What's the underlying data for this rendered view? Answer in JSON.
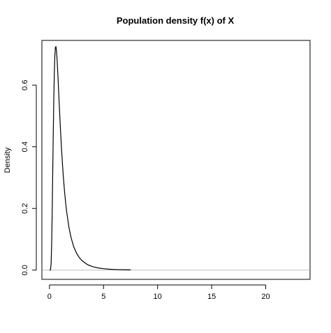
{
  "chart_data": {
    "type": "line",
    "title": "Population density f(x) of X",
    "xlabel": "",
    "ylabel": "Density",
    "xlim": [
      -0.7,
      24.1
    ],
    "ylim": [
      -0.03,
      0.745
    ],
    "x_ticks": [
      0,
      5,
      10,
      15,
      20
    ],
    "x_tick_labels": [
      "0",
      "5",
      "10",
      "15",
      "20"
    ],
    "y_ticks": [
      0.0,
      0.2,
      0.4,
      0.6
    ],
    "y_tick_labels": [
      "0.0",
      "0.2",
      "0.4",
      "0.6"
    ],
    "grid": false,
    "reference_line": {
      "y": 0,
      "color": "#bebebe"
    },
    "series": [
      {
        "color": "#000000",
        "x": [
          0,
          0.05,
          0.1,
          0.15,
          0.2,
          0.25,
          0.3,
          0.35,
          0.4,
          0.45,
          0.5,
          0.55,
          0.6,
          0.65,
          0.7,
          0.75,
          0.8,
          0.9,
          1.0,
          1.1,
          1.2,
          1.3,
          1.4,
          1.5,
          1.6,
          1.8,
          2.0,
          2.25,
          2.5,
          2.75,
          3.0,
          3.5,
          4.0,
          4.5,
          5.0,
          5.5,
          6.0,
          6.5,
          7.0,
          7.5
        ],
        "y": [
          0.0,
          0.0,
          0.002,
          0.021,
          0.081,
          0.184,
          0.312,
          0.442,
          0.555,
          0.641,
          0.696,
          0.723,
          0.725,
          0.711,
          0.686,
          0.653,
          0.617,
          0.541,
          0.468,
          0.402,
          0.345,
          0.295,
          0.253,
          0.217,
          0.187,
          0.139,
          0.105,
          0.075,
          0.055,
          0.041,
          0.031,
          0.018,
          0.011,
          0.007,
          0.0046,
          0.0031,
          0.0021,
          0.0015,
          0.0011,
          0.0008
        ]
      }
    ]
  }
}
